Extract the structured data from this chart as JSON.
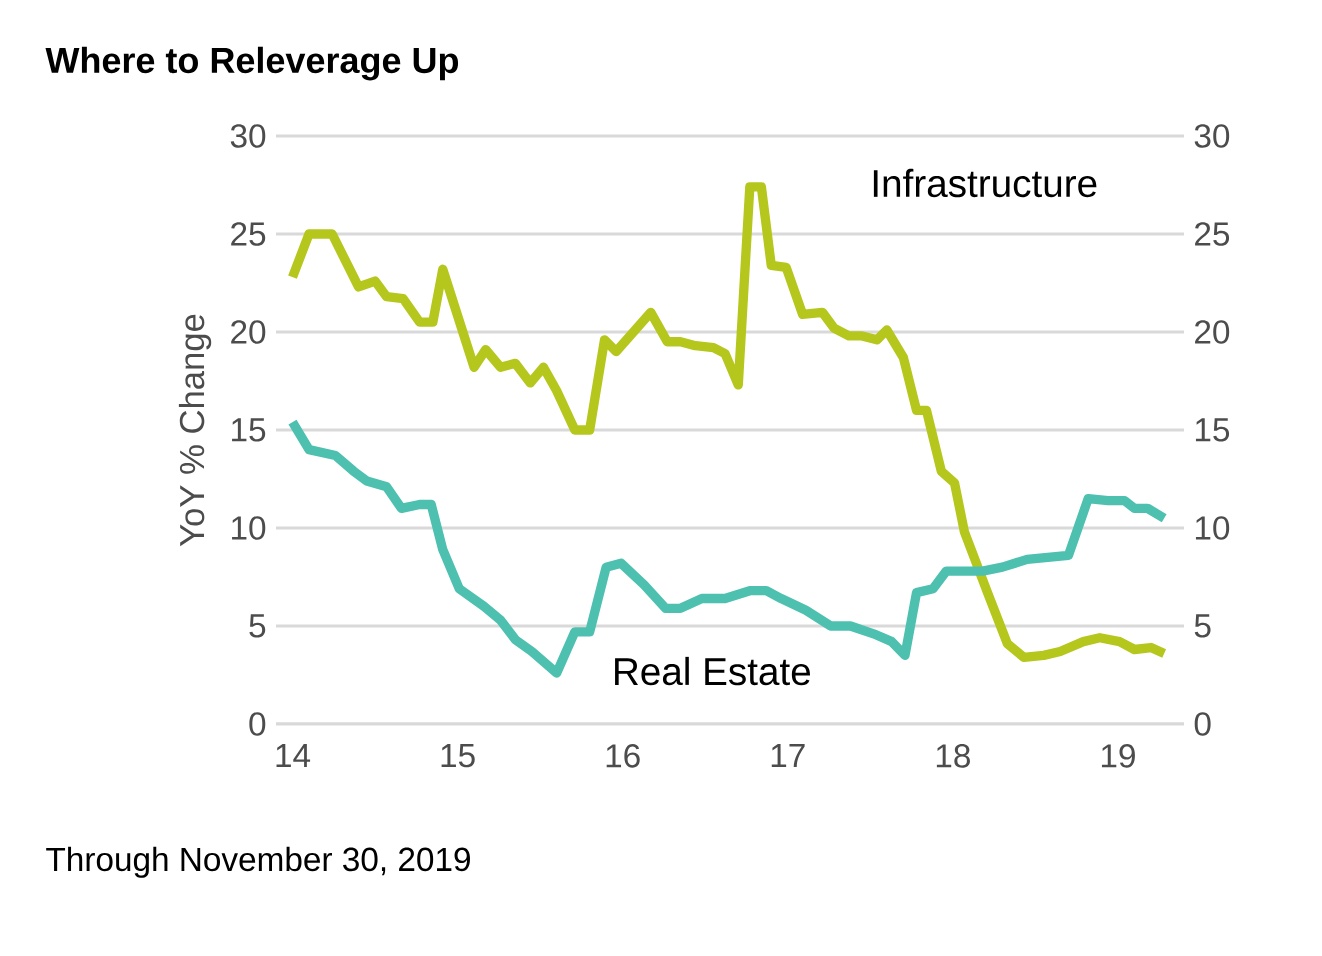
{
  "chart_data": {
    "type": "line",
    "title": "Where to Releverage Up",
    "ylabel": "YoY % Change",
    "xlim": [
      13.9,
      19.4
    ],
    "xticks": [
      14,
      15,
      16,
      17,
      18,
      19
    ],
    "ylim": [
      0,
      30
    ],
    "yticks": [
      0,
      5,
      10,
      15,
      20,
      25,
      30
    ],
    "y2lim": [
      0,
      30
    ],
    "y2ticks": [
      0,
      5,
      10,
      15,
      20,
      25,
      30
    ],
    "grid": "y",
    "marker": "none",
    "line_style": "solid",
    "annotations": [
      "Through November 30, 2019"
    ],
    "series": [
      {
        "name": "Infrastructure",
        "color": "#b5c71c",
        "x": [
          14.0,
          14.1,
          14.24,
          14.4,
          14.5,
          14.57,
          14.67,
          14.77,
          14.85,
          14.91,
          15.1,
          15.17,
          15.26,
          15.35,
          15.44,
          15.52,
          15.6,
          15.71,
          15.8,
          15.89,
          15.96,
          16.17,
          16.27,
          16.35,
          16.44,
          16.55,
          16.62,
          16.7,
          16.77,
          16.84,
          16.9,
          16.99,
          17.09,
          17.21,
          17.28,
          17.37,
          17.45,
          17.54,
          17.6,
          17.7,
          17.78,
          17.84,
          17.93,
          18.01,
          18.07,
          18.21,
          18.33,
          18.43,
          18.55,
          18.65,
          18.79,
          18.89,
          19.01,
          19.1,
          19.2,
          19.28
        ],
        "values": [
          22.8,
          25,
          25,
          22.3,
          22.6,
          21.8,
          21.7,
          20.5,
          20.5,
          23.2,
          18.2,
          19.1,
          18.2,
          18.4,
          17.4,
          18.2,
          17,
          15,
          15,
          19.6,
          19,
          21,
          19.5,
          19.5,
          19.3,
          19.2,
          18.9,
          17.3,
          27.4,
          27.4,
          23.4,
          23.3,
          20.9,
          21,
          20.2,
          19.8,
          19.8,
          19.6,
          20.1,
          18.7,
          16,
          16,
          12.9,
          12.3,
          9.8,
          6.7,
          4.1,
          3.4,
          3.5,
          3.7,
          4.2,
          4.4,
          4.2,
          3.8,
          3.9,
          3.6
        ]
      },
      {
        "name": "Real Estate",
        "color": "#4dc0b0",
        "x": [
          14.0,
          14.1,
          14.26,
          14.37,
          14.45,
          14.57,
          14.66,
          14.77,
          14.84,
          14.91,
          15.01,
          15.16,
          15.26,
          15.35,
          15.45,
          15.6,
          15.71,
          15.8,
          15.9,
          15.99,
          16.13,
          16.26,
          16.35,
          16.48,
          16.62,
          16.77,
          16.87,
          16.96,
          17.11,
          17.26,
          17.38,
          17.52,
          17.63,
          17.71,
          17.78,
          17.88,
          17.96,
          18.06,
          18.18,
          18.3,
          18.45,
          18.7,
          18.82,
          18.94,
          19.04,
          19.1,
          19.18,
          19.28
        ],
        "values": [
          15.4,
          14,
          13.7,
          12.9,
          12.4,
          12.1,
          11,
          11.2,
          11.2,
          8.9,
          6.9,
          6,
          5.3,
          4.3,
          3.7,
          2.6,
          4.7,
          4.7,
          8,
          8.2,
          7.1,
          5.9,
          5.9,
          6.4,
          6.4,
          6.8,
          6.8,
          6.4,
          5.8,
          5,
          5,
          4.6,
          4.2,
          3.5,
          6.7,
          6.9,
          7.8,
          7.8,
          7.8,
          8,
          8.4,
          8.6,
          11.5,
          11.4,
          11.4,
          11,
          11,
          10.5
        ]
      }
    ]
  }
}
